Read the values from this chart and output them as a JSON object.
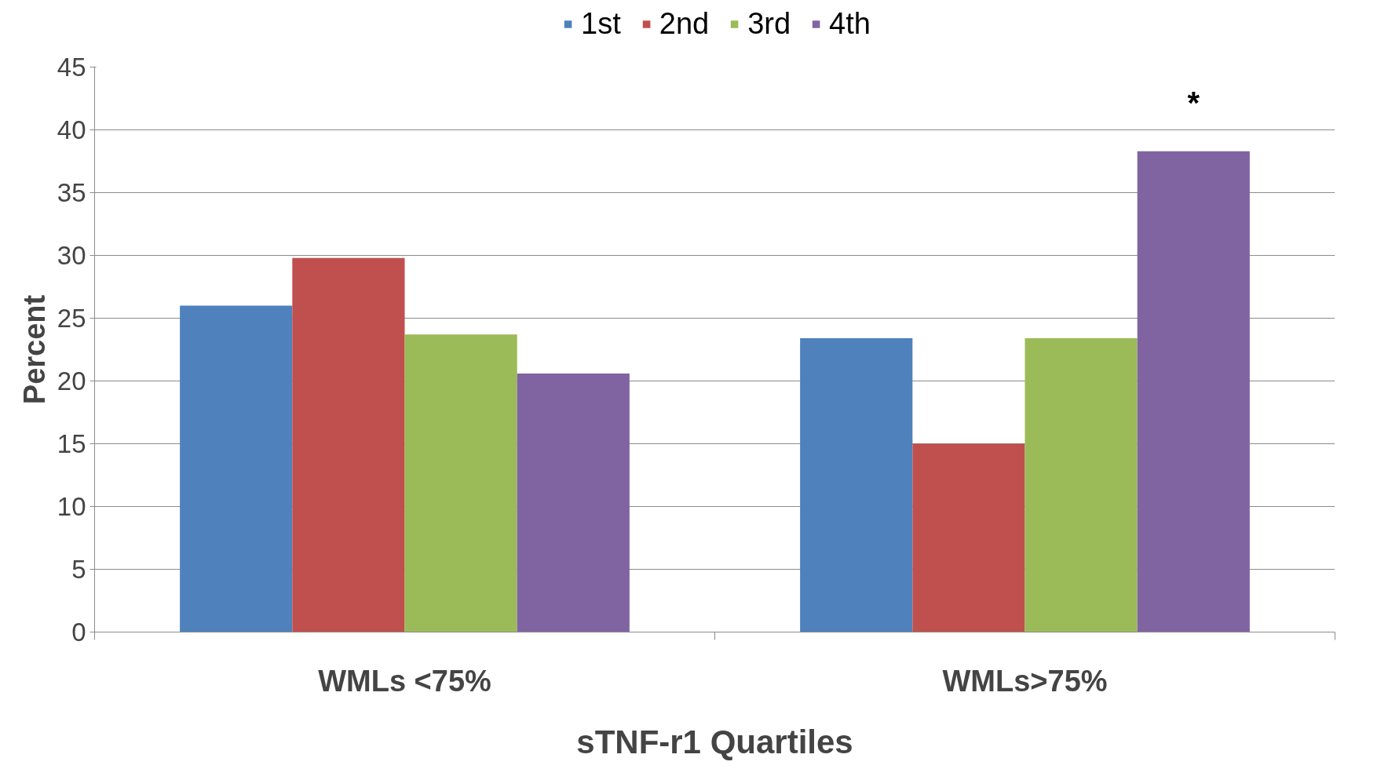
{
  "chart_data": {
    "type": "bar",
    "xlabel": "sTNF-r1 Quartiles",
    "ylabel": "Percent",
    "categories": [
      "WMLs <75%",
      "WMLs>75%"
    ],
    "series": [
      {
        "name": "1st",
        "color": "#4f81bd",
        "values": [
          26,
          23.4
        ]
      },
      {
        "name": "2nd",
        "color": "#c0504d",
        "values": [
          29.8,
          15
        ]
      },
      {
        "name": "3rd",
        "color": "#9bbb59",
        "values": [
          23.7,
          23.4
        ]
      },
      {
        "name": "4th",
        "color": "#8064a2",
        "values": [
          20.6,
          38.3
        ]
      }
    ],
    "ylim": [
      0,
      45
    ],
    "yticks": [
      0,
      5,
      10,
      15,
      20,
      25,
      30,
      35,
      40,
      45
    ],
    "grid": "y",
    "legend": "top",
    "annotations": [
      "*"
    ]
  }
}
